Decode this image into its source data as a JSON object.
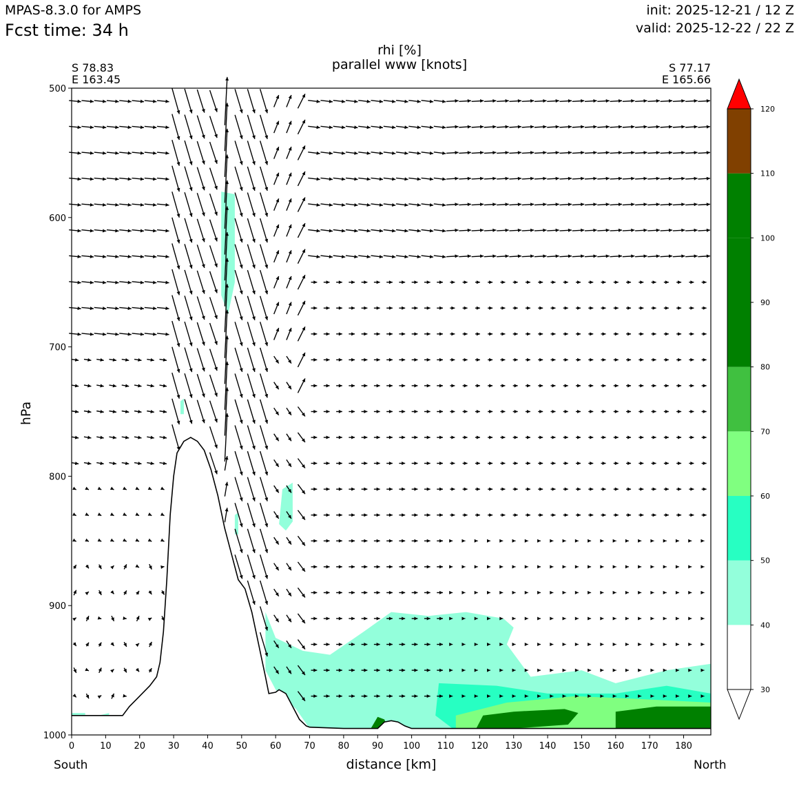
{
  "header": {
    "model": "MPAS-8.3.0 for AMPS",
    "fcst_time": "Fcst time:   34 h",
    "init": "init: 2025-12-21 / 12 Z",
    "valid": "valid: 2025-12-22 / 22 Z"
  },
  "chart_data": {
    "type": "cross-section",
    "title": "rhi [%]",
    "subtitle": "parallel www [knots]",
    "start_label": [
      "S 78.83",
      "E 163.45"
    ],
    "end_label": [
      "S 77.17",
      "E 165.66"
    ],
    "xlabel": "distance [km]",
    "ylabel": "hPa",
    "x_left_label": "South",
    "x_right_label": "North",
    "xlim": [
      0,
      188
    ],
    "ylim": [
      1000,
      500
    ],
    "x_ticks": [
      "0",
      "10",
      "20",
      "30",
      "40",
      "50",
      "60",
      "70",
      "80",
      "90",
      "100",
      "110",
      "120",
      "130",
      "140",
      "150",
      "160",
      "170",
      "180"
    ],
    "y_ticks": [
      "500",
      "600",
      "700",
      "800",
      "900",
      "1000"
    ],
    "terrain_pressure_profile": [
      [
        0,
        985
      ],
      [
        15,
        985
      ],
      [
        17,
        978
      ],
      [
        20,
        970
      ],
      [
        23,
        962
      ],
      [
        25,
        955
      ],
      [
        26,
        944
      ],
      [
        27,
        920
      ],
      [
        28,
        880
      ],
      [
        29,
        830
      ],
      [
        30,
        800
      ],
      [
        31,
        782
      ],
      [
        33,
        773
      ],
      [
        35,
        770
      ],
      [
        37,
        773
      ],
      [
        39,
        780
      ],
      [
        41,
        795
      ],
      [
        43,
        815
      ],
      [
        45,
        840
      ],
      [
        47,
        860
      ],
      [
        49,
        880
      ],
      [
        51,
        887
      ],
      [
        53,
        905
      ],
      [
        55,
        930
      ],
      [
        57,
        955
      ],
      [
        58,
        968
      ],
      [
        60,
        967
      ],
      [
        61,
        965
      ],
      [
        63,
        968
      ],
      [
        65,
        978
      ],
      [
        67,
        988
      ],
      [
        69,
        993
      ],
      [
        70,
        994
      ],
      [
        80,
        995
      ],
      [
        90,
        995
      ],
      [
        92,
        990
      ],
      [
        94,
        989
      ],
      [
        96,
        990
      ],
      [
        98,
        993
      ],
      [
        100,
        995
      ],
      [
        188,
        995
      ]
    ],
    "colorbar": {
      "levels": [
        "30",
        "40",
        "50",
        "60",
        "70",
        "80",
        "90",
        "100",
        "110",
        "120"
      ],
      "colors": [
        "#ffffff",
        "#93ffdb",
        "#27ffc2",
        "#80ff80",
        "#40c040",
        "#008000",
        "#008000",
        "#008000",
        "#804000",
        "#ff0000"
      ],
      "extend": "both"
    }
  }
}
